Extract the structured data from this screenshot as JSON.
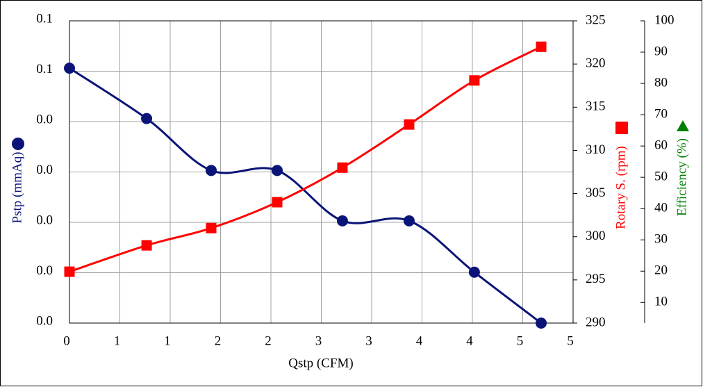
{
  "chart_data": {
    "type": "line",
    "xlabel": "Qstp (CFM)",
    "x": [
      0,
      0.766,
      1.407,
      2.062,
      2.71,
      3.372,
      4.02,
      4.683
    ],
    "series": [
      {
        "name": "Pstp (mmAq)",
        "color": "#0a1478",
        "marker": "circle",
        "axis": "y",
        "values": [
          0.0506,
          0.0406,
          0.0303,
          0.0303,
          0.0203,
          0.0203,
          0.0101,
          0
        ]
      },
      {
        "name": "Rotary S. (rpm)",
        "color": "#ff0000",
        "marker": "square",
        "axis": "y2",
        "values": [
          295.95,
          299,
          301,
          304,
          308,
          313,
          318.1,
          322
        ]
      },
      {
        "name": "Efficiency (%)",
        "color": "#008000",
        "marker": "triangle",
        "axis": "y3",
        "values": [
          null,
          null,
          null,
          null,
          null,
          null,
          null,
          null
        ]
      }
    ],
    "xlim": [
      0,
      5
    ],
    "xticks": [
      0,
      {
        "value": 0.5,
        "label": "1"
      },
      1,
      {
        "value": 1.5,
        "label": "2"
      },
      2,
      {
        "value": 2.5,
        "label": "3"
      },
      3,
      {
        "value": 3.5,
        "label": "4"
      },
      4,
      {
        "value": 4.5,
        "label": "5"
      },
      5
    ],
    "ylim": [
      0,
      0.06
    ],
    "yticks": [
      {
        "value": 0,
        "label": "0.0"
      },
      {
        "value": 0.01,
        "label": "0.0"
      },
      {
        "value": 0.02,
        "label": "0.0"
      },
      {
        "value": 0.03,
        "label": "0.0"
      },
      {
        "value": 0.04,
        "label": "0.0"
      },
      {
        "value": 0.05,
        "label": "0.1"
      },
      {
        "value": 0.06,
        "label": "0.1"
      }
    ],
    "y2lim": [
      290,
      325
    ],
    "y2ticks": [
      290,
      295,
      300,
      305,
      310,
      315,
      320,
      325
    ],
    "y3lim": [
      3.4,
      100
    ],
    "y3ticks": [
      10,
      20,
      30,
      40,
      50,
      60,
      70,
      80,
      90,
      100
    ],
    "grid": true
  }
}
